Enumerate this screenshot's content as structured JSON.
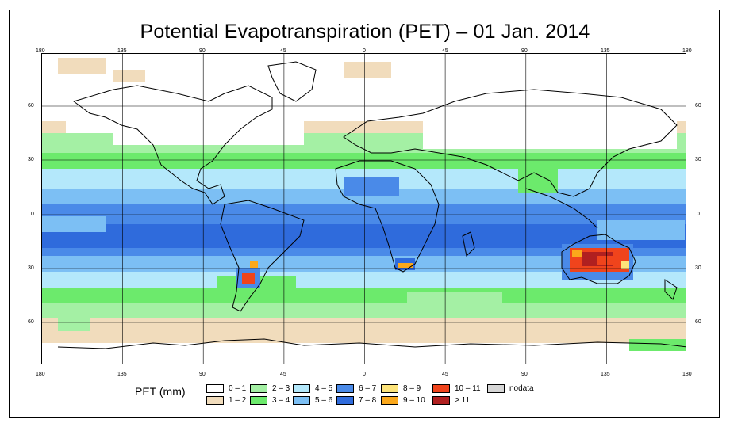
{
  "title": "Potential Evapotranspiration (PET) – 01 Jan. 2014",
  "axes": {
    "lon_ticks": [
      "180",
      "135",
      "90",
      "45",
      "0",
      "45",
      "90",
      "135",
      "180"
    ],
    "lat_ticks": [
      "60",
      "30",
      "0",
      "30",
      "60"
    ]
  },
  "legend": {
    "title": "PET (mm)",
    "items": [
      {
        "label": "0 – 1",
        "color": "#ffffff"
      },
      {
        "label": "1 – 2",
        "color": "#f1dcbc"
      },
      {
        "label": "2 – 3",
        "color": "#a4f0a4"
      },
      {
        "label": "3 – 4",
        "color": "#6cea6c"
      },
      {
        "label": "4 – 5",
        "color": "#b4e8fb"
      },
      {
        "label": "5 – 6",
        "color": "#7cbff4"
      },
      {
        "label": "6 – 7",
        "color": "#4a8ae8"
      },
      {
        "label": "7 – 8",
        "color": "#2f6bdc"
      },
      {
        "label": "8 – 9",
        "color": "#fde47a"
      },
      {
        "label": "9 – 10",
        "color": "#fba81b"
      },
      {
        "label": "10 – 11",
        "color": "#f0441c"
      },
      {
        "label": "> 11",
        "color": "#b02020"
      },
      {
        "label": "nodata",
        "color": "#d6d6d6"
      }
    ]
  }
}
